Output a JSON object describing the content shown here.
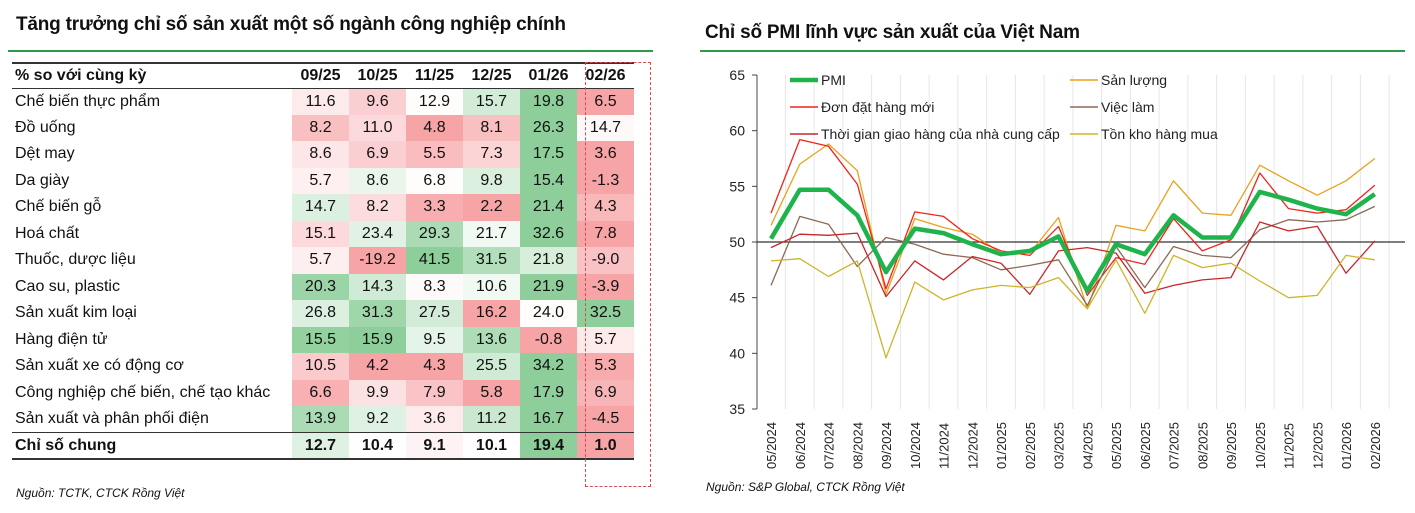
{
  "table": {
    "title": "Tăng trưởng chỉ số sản xuất một số ngành công nghiệp chính",
    "header_label": "% so với cùng kỳ",
    "columns": [
      "09/25",
      "10/25",
      "11/25",
      "12/25",
      "01/26",
      "02/26"
    ],
    "rows": [
      {
        "label": "Chế biến thực phẩm",
        "values": [
          "11.6",
          "9.6",
          "12.9",
          "15.7",
          "19.8",
          "6.5"
        ]
      },
      {
        "label": "Đồ uống",
        "values": [
          "8.2",
          "11.0",
          "4.8",
          "8.1",
          "26.3",
          "14.7"
        ]
      },
      {
        "label": "Dệt may",
        "values": [
          "8.6",
          "6.9",
          "5.5",
          "7.3",
          "17.5",
          "3.6"
        ]
      },
      {
        "label": "Da giày",
        "values": [
          "5.7",
          "8.6",
          "6.8",
          "9.8",
          "15.4",
          "-1.3"
        ]
      },
      {
        "label": "Chế biến gỗ",
        "values": [
          "14.7",
          "8.2",
          "3.3",
          "2.2",
          "21.4",
          "4.3"
        ]
      },
      {
        "label": "Hoá chất",
        "values": [
          "15.1",
          "23.4",
          "29.3",
          "21.7",
          "32.6",
          "7.8"
        ]
      },
      {
        "label": "Thuốc, dược liệu",
        "values": [
          "5.7",
          "-19.2",
          "41.5",
          "31.5",
          "21.8",
          "-9.0"
        ]
      },
      {
        "label": "Cao su, plastic",
        "values": [
          "20.3",
          "14.3",
          "8.3",
          "10.6",
          "21.9",
          "-3.9"
        ]
      },
      {
        "label": "Sản xuất kim loại",
        "values": [
          "26.8",
          "31.3",
          "27.5",
          "16.2",
          "24.0",
          "32.5"
        ]
      },
      {
        "label": "Hàng điện tử",
        "values": [
          "15.5",
          "15.9",
          "9.5",
          "13.6",
          "-0.8",
          "5.7"
        ]
      },
      {
        "label": "Sản xuất xe có động cơ",
        "values": [
          "10.5",
          "4.2",
          "4.3",
          "25.5",
          "34.2",
          "5.3"
        ]
      },
      {
        "label": "Công nghiệp chế biến, chế tạo khác",
        "values": [
          "6.6",
          "9.9",
          "7.9",
          "5.8",
          "17.9",
          "6.9"
        ]
      },
      {
        "label": "Sản xuất và phân phối điện",
        "values": [
          "13.9",
          "9.2",
          "3.6",
          "11.2",
          "16.7",
          "-4.5"
        ]
      }
    ],
    "total": {
      "label": "Chỉ số chung",
      "values": [
        "12.7",
        "10.4",
        "9.1",
        "10.1",
        "19.4",
        "1.0"
      ]
    },
    "source": "Nguồn: TCTK, CTCK Rồng Việt"
  },
  "chart_data": {
    "type": "line",
    "title": "Chỉ số PMI lĩnh vực sản xuất của Việt Nam",
    "x": [
      "05/2024",
      "06/2024",
      "07/2024",
      "08/2024",
      "09/2024",
      "10/2024",
      "11/2024",
      "12/2024",
      "01/2025",
      "02/2025",
      "03/2025",
      "04/2025",
      "05/2025",
      "06/2025",
      "07/2025",
      "08/2025",
      "09/2025",
      "10/2025",
      "11/2025",
      "12/2025",
      "01/2026",
      "02/2026"
    ],
    "ylim": [
      35,
      65
    ],
    "yticks": [
      "35",
      "40",
      "45",
      "50",
      "55",
      "60",
      "65"
    ],
    "reference_line": 50,
    "legend_placement": "top",
    "series": [
      {
        "name": "Sản lượng",
        "color": "#e8a21c",
        "values": [
          51.5,
          57.0,
          58.8,
          56.4,
          45.3,
          52.1,
          51.3,
          50.7,
          49.0,
          49.0,
          52.2,
          44.0,
          51.5,
          51.0,
          55.5,
          52.6,
          52.4,
          56.9,
          55.5,
          54.2,
          55.5,
          57.5
        ]
      },
      {
        "name": "Đơn đặt hàng mới",
        "color": "#f2221c",
        "values": [
          52.6,
          59.2,
          58.6,
          55.2,
          45.8,
          52.7,
          52.3,
          50.3,
          49.2,
          48.8,
          51.4,
          45.2,
          48.6,
          48.0,
          52.1,
          49.2,
          50.2,
          56.2,
          53.0,
          52.6,
          52.9,
          55.1
        ]
      },
      {
        "name": "Việc làm",
        "color": "#8b6a55",
        "values": [
          46.1,
          52.3,
          51.6,
          47.8,
          50.4,
          49.8,
          48.9,
          48.6,
          47.5,
          47.9,
          48.4,
          44.3,
          49.6,
          45.9,
          49.6,
          48.8,
          48.6,
          51.1,
          52.0,
          51.8,
          52.0,
          53.2
        ]
      },
      {
        "name": "Thời gian giao hàng của nhà cung cấp",
        "color": "#c8262a",
        "values": [
          49.5,
          50.7,
          50.6,
          50.8,
          45.1,
          48.3,
          46.6,
          48.7,
          48.1,
          45.3,
          49.2,
          49.5,
          49.0,
          45.4,
          46.1,
          46.6,
          46.8,
          51.8,
          51.0,
          51.4,
          47.2,
          50.1
        ]
      },
      {
        "name": "Tồn kho hàng mua",
        "color": "#cdb52a",
        "values": [
          48.3,
          48.5,
          46.9,
          48.3,
          39.6,
          46.4,
          44.8,
          45.7,
          46.1,
          45.9,
          46.8,
          44.0,
          48.4,
          43.6,
          48.8,
          47.7,
          48.1,
          46.5,
          45.0,
          45.2,
          48.8,
          48.4
        ]
      },
      {
        "name": "PMI",
        "color": "#1fb34b",
        "values": [
          50.3,
          54.7,
          54.7,
          52.4,
          47.3,
          51.2,
          50.8,
          49.8,
          48.9,
          49.2,
          50.5,
          45.6,
          49.8,
          48.9,
          52.4,
          50.4,
          50.4,
          54.5,
          53.8,
          53.0,
          52.5,
          54.3
        ]
      }
    ],
    "source": "Nguồn: S&P Global, CTCK Rồng Việt"
  }
}
